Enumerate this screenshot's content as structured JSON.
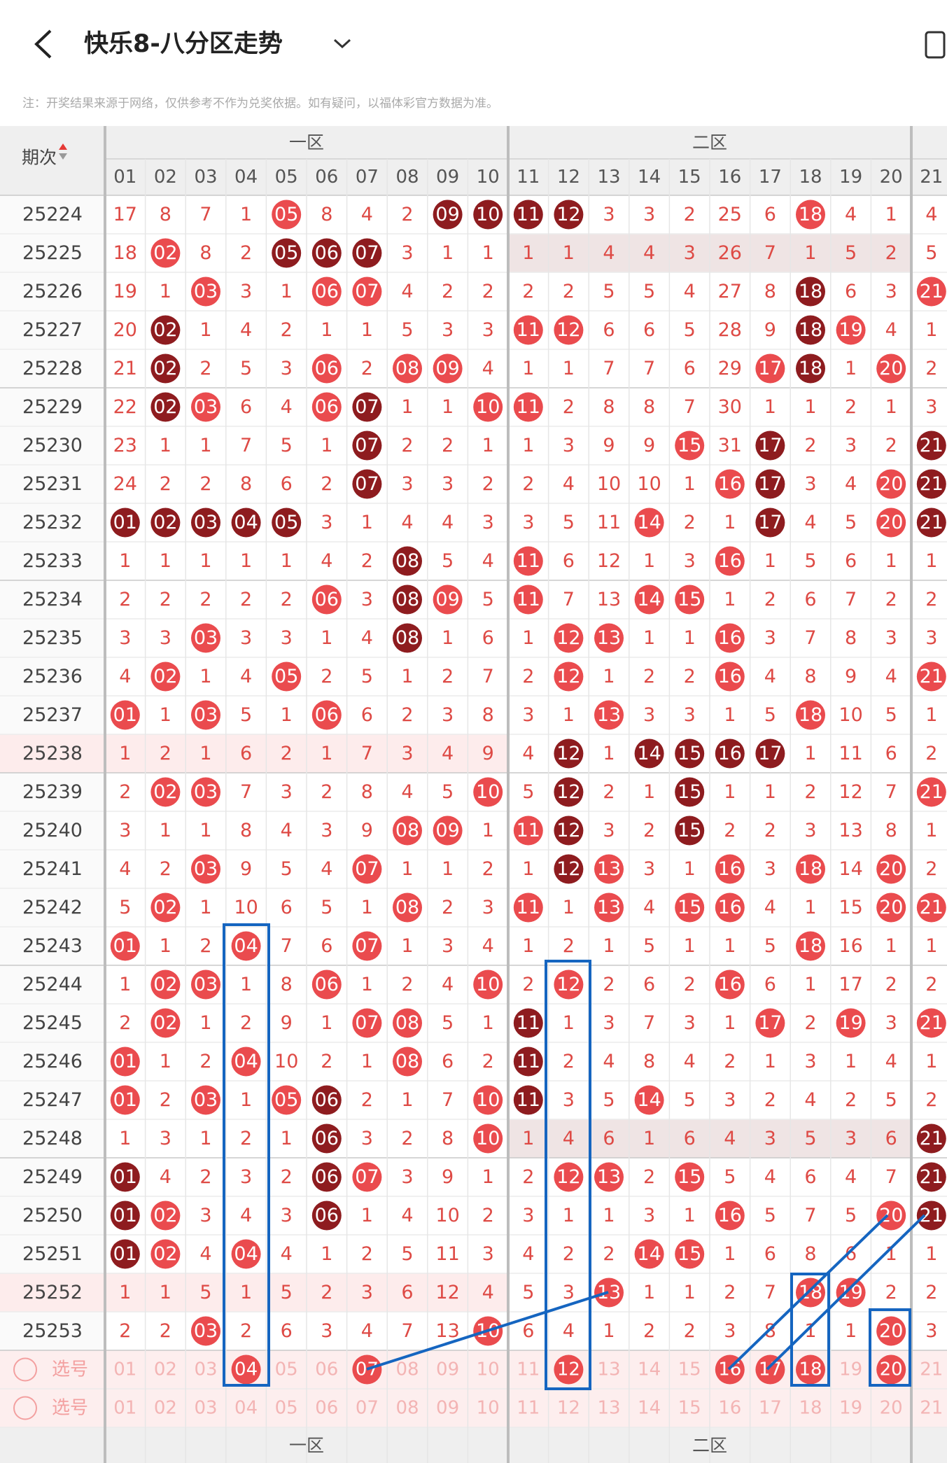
{
  "header": {
    "title": "快乐8-八分区走势",
    "notice": "注：开奖结果来源于网络，仅供参考不作为兑奖依据。如有疑问，以福体彩官方数据为准。"
  },
  "table": {
    "period_header": "期次",
    "zones": [
      "一区",
      "二区"
    ],
    "columns": [
      "01",
      "02",
      "03",
      "04",
      "05",
      "06",
      "07",
      "08",
      "09",
      "10",
      "11",
      "12",
      "13",
      "14",
      "15",
      "16",
      "17",
      "18",
      "19",
      "20",
      "21"
    ],
    "rows": [
      {
        "period": "25224",
        "cells": [
          "17",
          "8",
          "7",
          "1",
          "05",
          "8",
          "4",
          "2",
          "09",
          "10",
          "11",
          "12",
          "3",
          "3",
          "2",
          "25",
          "6",
          "18",
          "4",
          "1",
          "4"
        ],
        "red": [
          4,
          17
        ],
        "dark": [
          8,
          9,
          10,
          11
        ]
      },
      {
        "period": "25225",
        "cells": [
          "18",
          "02",
          "8",
          "2",
          "05",
          "06",
          "07",
          "3",
          "1",
          "1",
          "1",
          "1",
          "4",
          "4",
          "3",
          "26",
          "7",
          "1",
          "5",
          "2",
          "5"
        ],
        "red": [
          1
        ],
        "dark": [
          4,
          5,
          6
        ],
        "shade": "right"
      },
      {
        "period": "25226",
        "cells": [
          "19",
          "1",
          "03",
          "3",
          "1",
          "06",
          "07",
          "4",
          "2",
          "2",
          "2",
          "2",
          "5",
          "5",
          "4",
          "27",
          "8",
          "18",
          "6",
          "3",
          "21"
        ],
        "red": [
          2,
          5,
          6,
          20
        ],
        "dark": [
          17
        ]
      },
      {
        "period": "25227",
        "cells": [
          "20",
          "02",
          "1",
          "4",
          "2",
          "1",
          "1",
          "5",
          "3",
          "3",
          "11",
          "12",
          "6",
          "6",
          "5",
          "28",
          "9",
          "18",
          "19",
          "4",
          "1"
        ],
        "red": [
          10,
          11,
          18
        ],
        "dark": [
          1,
          17
        ]
      },
      {
        "period": "25228",
        "cells": [
          "21",
          "02",
          "2",
          "5",
          "3",
          "06",
          "2",
          "08",
          "09",
          "4",
          "1",
          "1",
          "7",
          "7",
          "6",
          "29",
          "17",
          "18",
          "1",
          "20",
          "2"
        ],
        "red": [
          5,
          7,
          8,
          16,
          19
        ],
        "dark": [
          1,
          17
        ]
      },
      {
        "period": "25229",
        "cells": [
          "22",
          "02",
          "03",
          "6",
          "4",
          "06",
          "07",
          "1",
          "1",
          "10",
          "11",
          "2",
          "8",
          "8",
          "7",
          "30",
          "1",
          "1",
          "2",
          "1",
          "3"
        ],
        "red": [
          2,
          5,
          9,
          10
        ],
        "dark": [
          1,
          6
        ]
      },
      {
        "period": "25230",
        "cells": [
          "23",
          "1",
          "1",
          "7",
          "5",
          "1",
          "07",
          "2",
          "2",
          "1",
          "1",
          "3",
          "9",
          "9",
          "15",
          "31",
          "17",
          "2",
          "3",
          "2",
          "21"
        ],
        "red": [
          14
        ],
        "dark": [
          6,
          16,
          20
        ]
      },
      {
        "period": "25231",
        "cells": [
          "24",
          "2",
          "2",
          "8",
          "6",
          "2",
          "07",
          "3",
          "3",
          "2",
          "2",
          "4",
          "10",
          "10",
          "1",
          "16",
          "17",
          "3",
          "4",
          "20",
          "21"
        ],
        "red": [
          15,
          19
        ],
        "dark": [
          6,
          16,
          20
        ]
      },
      {
        "period": "25232",
        "cells": [
          "01",
          "02",
          "03",
          "04",
          "05",
          "3",
          "1",
          "4",
          "4",
          "3",
          "3",
          "5",
          "11",
          "14",
          "2",
          "1",
          "17",
          "4",
          "5",
          "20",
          "21"
        ],
        "red": [
          13,
          19
        ],
        "dark": [
          0,
          1,
          2,
          3,
          4,
          16,
          20
        ]
      },
      {
        "period": "25233",
        "cells": [
          "1",
          "1",
          "1",
          "1",
          "1",
          "4",
          "2",
          "08",
          "5",
          "4",
          "11",
          "6",
          "12",
          "1",
          "3",
          "16",
          "1",
          "5",
          "6",
          "1",
          "1"
        ],
        "red": [
          10,
          15
        ],
        "dark": [
          7
        ]
      },
      {
        "period": "25234",
        "cells": [
          "2",
          "2",
          "2",
          "2",
          "2",
          "06",
          "3",
          "08",
          "09",
          "5",
          "11",
          "7",
          "13",
          "14",
          "15",
          "1",
          "2",
          "6",
          "7",
          "2",
          "2"
        ],
        "red": [
          5,
          8,
          10,
          13,
          14
        ],
        "dark": [
          7
        ]
      },
      {
        "period": "25235",
        "cells": [
          "3",
          "3",
          "03",
          "3",
          "3",
          "1",
          "4",
          "08",
          "1",
          "6",
          "1",
          "12",
          "13",
          "1",
          "1",
          "16",
          "3",
          "7",
          "8",
          "3",
          "3"
        ],
        "red": [
          2,
          11,
          12,
          15
        ],
        "dark": [
          7
        ]
      },
      {
        "period": "25236",
        "cells": [
          "4",
          "02",
          "1",
          "4",
          "05",
          "2",
          "5",
          "1",
          "2",
          "7",
          "2",
          "12",
          "1",
          "2",
          "2",
          "16",
          "4",
          "8",
          "9",
          "4",
          "21"
        ],
        "red": [
          1,
          4,
          11,
          15,
          20
        ],
        "dark": []
      },
      {
        "period": "25237",
        "cells": [
          "01",
          "1",
          "03",
          "5",
          "1",
          "06",
          "6",
          "2",
          "3",
          "8",
          "3",
          "1",
          "13",
          "3",
          "3",
          "1",
          "5",
          "18",
          "10",
          "5",
          "1"
        ],
        "red": [
          0,
          2,
          5,
          12,
          17
        ],
        "dark": []
      },
      {
        "period": "25238",
        "cells": [
          "1",
          "2",
          "1",
          "6",
          "2",
          "1",
          "7",
          "3",
          "4",
          "9",
          "4",
          "12",
          "1",
          "14",
          "15",
          "16",
          "17",
          "1",
          "11",
          "6",
          "2"
        ],
        "red": [],
        "dark": [
          11,
          13,
          14,
          15,
          16
        ],
        "shade": "left"
      },
      {
        "period": "25239",
        "cells": [
          "2",
          "02",
          "03",
          "7",
          "3",
          "2",
          "8",
          "4",
          "5",
          "10",
          "5",
          "12",
          "2",
          "1",
          "15",
          "1",
          "1",
          "2",
          "12",
          "7",
          "21"
        ],
        "red": [
          1,
          2,
          9,
          20
        ],
        "dark": [
          11,
          14
        ]
      },
      {
        "period": "25240",
        "cells": [
          "3",
          "1",
          "1",
          "8",
          "4",
          "3",
          "9",
          "08",
          "09",
          "1",
          "11",
          "12",
          "3",
          "2",
          "15",
          "2",
          "2",
          "3",
          "13",
          "8",
          "1"
        ],
        "red": [
          7,
          8,
          10
        ],
        "dark": [
          11,
          14
        ]
      },
      {
        "period": "25241",
        "cells": [
          "4",
          "2",
          "03",
          "9",
          "5",
          "4",
          "07",
          "1",
          "1",
          "2",
          "1",
          "12",
          "13",
          "3",
          "1",
          "16",
          "3",
          "18",
          "14",
          "20",
          "2"
        ],
        "red": [
          2,
          6,
          12,
          15,
          17,
          19
        ],
        "dark": [
          11
        ]
      },
      {
        "period": "25242",
        "cells": [
          "5",
          "02",
          "1",
          "10",
          "6",
          "5",
          "1",
          "08",
          "2",
          "3",
          "11",
          "1",
          "13",
          "4",
          "15",
          "16",
          "4",
          "1",
          "15",
          "20",
          "21"
        ],
        "red": [
          1,
          7,
          10,
          12,
          14,
          15,
          19,
          20
        ],
        "dark": []
      },
      {
        "period": "25243",
        "cells": [
          "01",
          "1",
          "2",
          "04",
          "7",
          "6",
          "07",
          "1",
          "3",
          "4",
          "1",
          "2",
          "1",
          "5",
          "1",
          "1",
          "5",
          "18",
          "16",
          "1",
          "1"
        ],
        "red": [
          0,
          3,
          6,
          17
        ],
        "dark": []
      },
      {
        "period": "25244",
        "cells": [
          "1",
          "02",
          "03",
          "1",
          "8",
          "06",
          "1",
          "2",
          "4",
          "10",
          "2",
          "12",
          "2",
          "6",
          "2",
          "16",
          "6",
          "1",
          "17",
          "2",
          "2"
        ],
        "red": [
          1,
          2,
          5,
          9,
          11,
          15
        ],
        "dark": []
      },
      {
        "period": "25245",
        "cells": [
          "2",
          "02",
          "1",
          "2",
          "9",
          "1",
          "07",
          "08",
          "5",
          "1",
          "11",
          "1",
          "3",
          "7",
          "3",
          "1",
          "17",
          "2",
          "19",
          "3",
          "21"
        ],
        "red": [
          1,
          6,
          7,
          16,
          18,
          20
        ],
        "dark": [
          10
        ]
      },
      {
        "period": "25246",
        "cells": [
          "01",
          "1",
          "2",
          "04",
          "10",
          "2",
          "1",
          "08",
          "6",
          "2",
          "11",
          "2",
          "4",
          "8",
          "4",
          "2",
          "1",
          "3",
          "1",
          "4",
          "1"
        ],
        "red": [
          0,
          3,
          7
        ],
        "dark": [
          10
        ]
      },
      {
        "period": "25247",
        "cells": [
          "01",
          "2",
          "03",
          "1",
          "05",
          "06",
          "2",
          "1",
          "7",
          "10",
          "11",
          "3",
          "5",
          "14",
          "5",
          "3",
          "2",
          "4",
          "2",
          "5",
          "2"
        ],
        "red": [
          0,
          2,
          4,
          9,
          13
        ],
        "dark": [
          5,
          10
        ]
      },
      {
        "period": "25248",
        "cells": [
          "1",
          "3",
          "1",
          "2",
          "1",
          "06",
          "3",
          "2",
          "8",
          "10",
          "1",
          "4",
          "6",
          "1",
          "6",
          "4",
          "3",
          "5",
          "3",
          "6",
          "21"
        ],
        "red": [
          9
        ],
        "dark": [
          5,
          20
        ],
        "shade": "right"
      },
      {
        "period": "25249",
        "cells": [
          "01",
          "4",
          "2",
          "3",
          "2",
          "06",
          "07",
          "3",
          "9",
          "1",
          "2",
          "12",
          "13",
          "2",
          "15",
          "5",
          "4",
          "6",
          "4",
          "7",
          "21"
        ],
        "red": [
          6,
          11,
          12,
          14
        ],
        "dark": [
          0,
          5,
          20
        ]
      },
      {
        "period": "25250",
        "cells": [
          "01",
          "02",
          "3",
          "4",
          "3",
          "06",
          "1",
          "4",
          "10",
          "2",
          "3",
          "1",
          "1",
          "3",
          "1",
          "16",
          "5",
          "7",
          "5",
          "20",
          "21"
        ],
        "red": [
          1,
          15,
          19
        ],
        "dark": [
          0,
          5,
          20
        ]
      },
      {
        "period": "25251",
        "cells": [
          "01",
          "02",
          "4",
          "04",
          "4",
          "1",
          "2",
          "5",
          "11",
          "3",
          "4",
          "2",
          "2",
          "14",
          "15",
          "1",
          "6",
          "8",
          "6",
          "1",
          "1"
        ],
        "red": [
          1,
          3,
          13,
          14
        ],
        "dark": [
          0
        ]
      },
      {
        "period": "25252",
        "cells": [
          "1",
          "1",
          "5",
          "1",
          "5",
          "2",
          "3",
          "6",
          "12",
          "4",
          "5",
          "3",
          "13",
          "1",
          "1",
          "2",
          "7",
          "18",
          "19",
          "2",
          "2"
        ],
        "red": [
          12,
          17,
          18
        ],
        "dark": [],
        "shade": "left"
      },
      {
        "period": "25253",
        "cells": [
          "2",
          "2",
          "03",
          "2",
          "6",
          "3",
          "4",
          "7",
          "13",
          "10",
          "6",
          "4",
          "1",
          "2",
          "2",
          "3",
          "8",
          "1",
          "1",
          "20",
          "3"
        ],
        "red": [
          2,
          9,
          19
        ],
        "dark": []
      }
    ],
    "select_rows": [
      {
        "label": "选号",
        "selected": [
          3,
          6,
          11,
          15,
          16,
          17,
          19
        ]
      },
      {
        "label": "选号",
        "selected": []
      }
    ]
  }
}
